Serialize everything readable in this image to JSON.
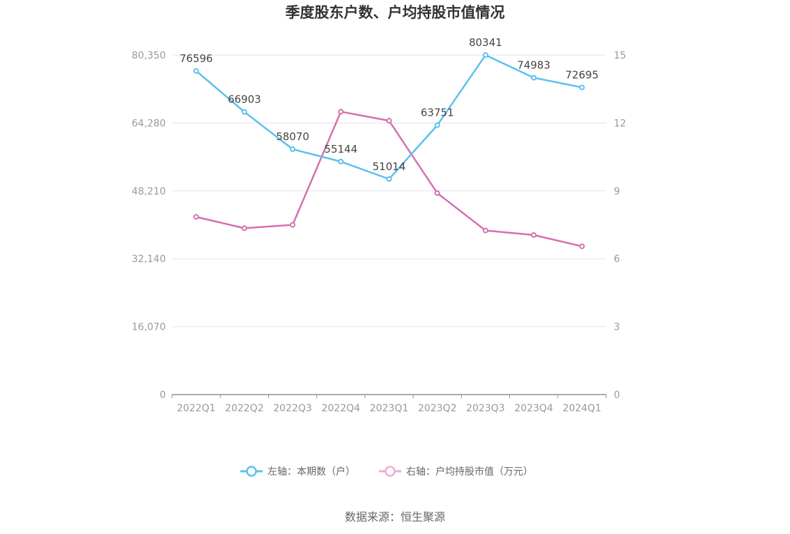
{
  "chart_data": {
    "type": "line",
    "title": "季度股东户数、户均持股市值情况",
    "categories": [
      "2022Q1",
      "2022Q2",
      "2022Q3",
      "2022Q4",
      "2023Q1",
      "2023Q2",
      "2023Q3",
      "2023Q4",
      "2024Q1"
    ],
    "series": [
      {
        "name": "左轴：本期数（户）",
        "axis": "left",
        "color": "#5bc0f0",
        "values": [
          76596,
          66903,
          58070,
          55144,
          51014,
          63751,
          80341,
          74983,
          72695
        ],
        "labels": [
          "76596",
          "66903",
          "58070",
          "55144",
          "51014",
          "63751",
          "80341",
          "74983",
          "72695"
        ]
      },
      {
        "name": "右轴：户均持股市值（万元）",
        "axis": "right",
        "color": "#d56fb0",
        "values": [
          7.85,
          7.35,
          7.5,
          12.5,
          12.1,
          8.9,
          7.25,
          7.05,
          6.55
        ]
      }
    ],
    "y_left": {
      "min": 0,
      "max": 80350,
      "ticks": [
        "0",
        "16,070",
        "32,140",
        "48,210",
        "64,280",
        "80,350"
      ]
    },
    "y_right": {
      "min": 0,
      "max": 15,
      "ticks": [
        "0",
        "3",
        "6",
        "9",
        "12",
        "15"
      ]
    },
    "grid": true,
    "legend_position": "bottom",
    "source": "数据来源：恒生聚源"
  }
}
